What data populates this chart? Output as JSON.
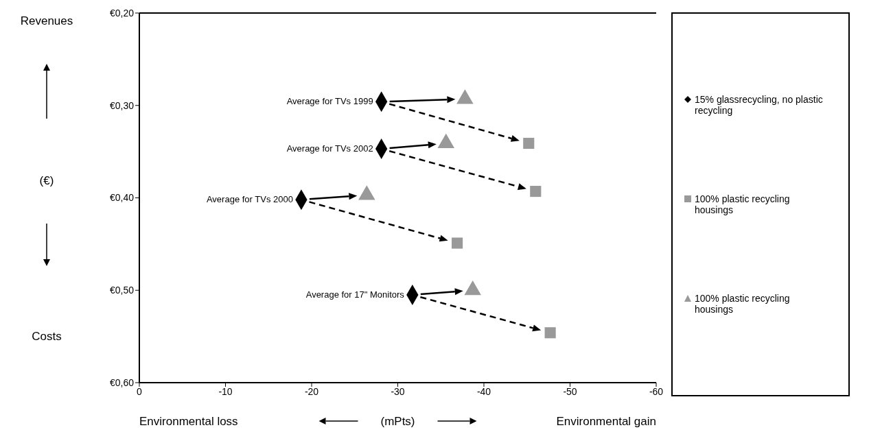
{
  "chart_data": {
    "type": "scatter",
    "xlabel": "(mPts)",
    "ylabel": "(€)",
    "xlim": [
      0,
      -60
    ],
    "xticks": [
      0,
      -10,
      -20,
      -30,
      -40,
      -50,
      -60
    ],
    "ylim": [
      0.6,
      0.2
    ],
    "yticks": [
      {
        "value": 0.2,
        "label": "€0,20"
      },
      {
        "value": 0.3,
        "label": "€0,30"
      },
      {
        "value": 0.4,
        "label": "€0,40"
      },
      {
        "value": 0.5,
        "label": "€0,50"
      },
      {
        "value": 0.6,
        "label": "€0,60"
      }
    ],
    "legend": "right",
    "series": [
      {
        "name": "15% glassrecycling, no plastic recycling",
        "color": "#000000",
        "marker": "diamond",
        "x": [
          -28.1,
          -28.1,
          -18.8,
          -31.7
        ],
        "values": [
          0.296,
          0.347,
          0.402,
          0.505
        ]
      },
      {
        "name": "100% plastic recycling housings",
        "color": "#999999",
        "marker": "square",
        "x": [
          -45.2,
          -46.0,
          -36.9,
          -47.7
        ],
        "values": [
          0.341,
          0.393,
          0.449,
          0.546
        ]
      },
      {
        "name": "100% plastic recycling housings",
        "color": "#999999",
        "marker": "triangle",
        "x": [
          -37.8,
          -35.6,
          -26.4,
          -38.7
        ],
        "values": [
          0.293,
          0.341,
          0.397,
          0.5
        ]
      }
    ],
    "annotations": [
      "Revenues",
      "Costs",
      "Environmental loss",
      "Environmental gain",
      {
        "text": "Average for TVs 1999",
        "x": -28.1,
        "y": 0.296
      },
      {
        "text": "Average for TVs 2002",
        "x": -28.1,
        "y": 0.347
      },
      {
        "text": "Average for TVs 2000",
        "x": -18.8,
        "y": 0.402
      },
      {
        "text": "Average for 17\" Monitors",
        "x": -31.7,
        "y": 0.505
      }
    ]
  }
}
